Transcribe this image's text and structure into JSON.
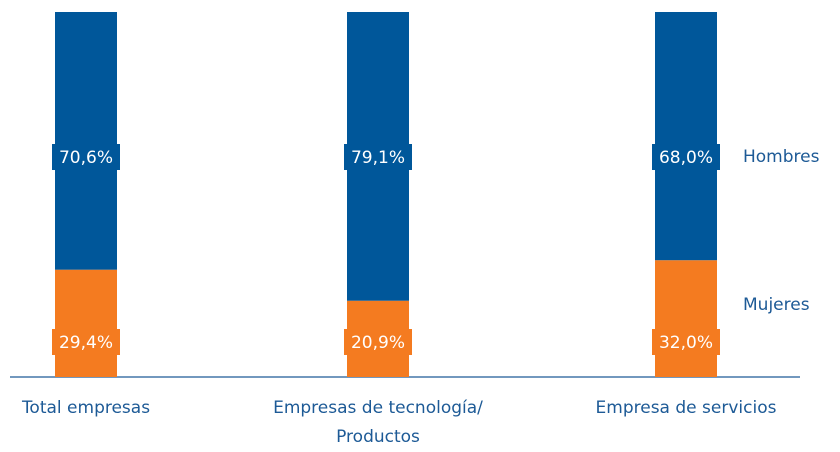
{
  "chart_data": {
    "type": "stacked_bar",
    "categories": [
      "Total empresas",
      "Empresas de tecnología/ Productos",
      "Empresa de servicios"
    ],
    "series": [
      {
        "name": "Hombres",
        "color": "#00579a",
        "values": [
          70.6,
          79.1,
          68.0
        ],
        "value_labels": [
          "70,6%",
          "79,1%",
          "68,0%"
        ]
      },
      {
        "name": "Mujeres",
        "color": "#f47b20",
        "values": [
          29.4,
          20.9,
          32.0
        ],
        "value_labels": [
          "29,4%",
          "20,9%",
          "32,0%"
        ]
      }
    ]
  }
}
